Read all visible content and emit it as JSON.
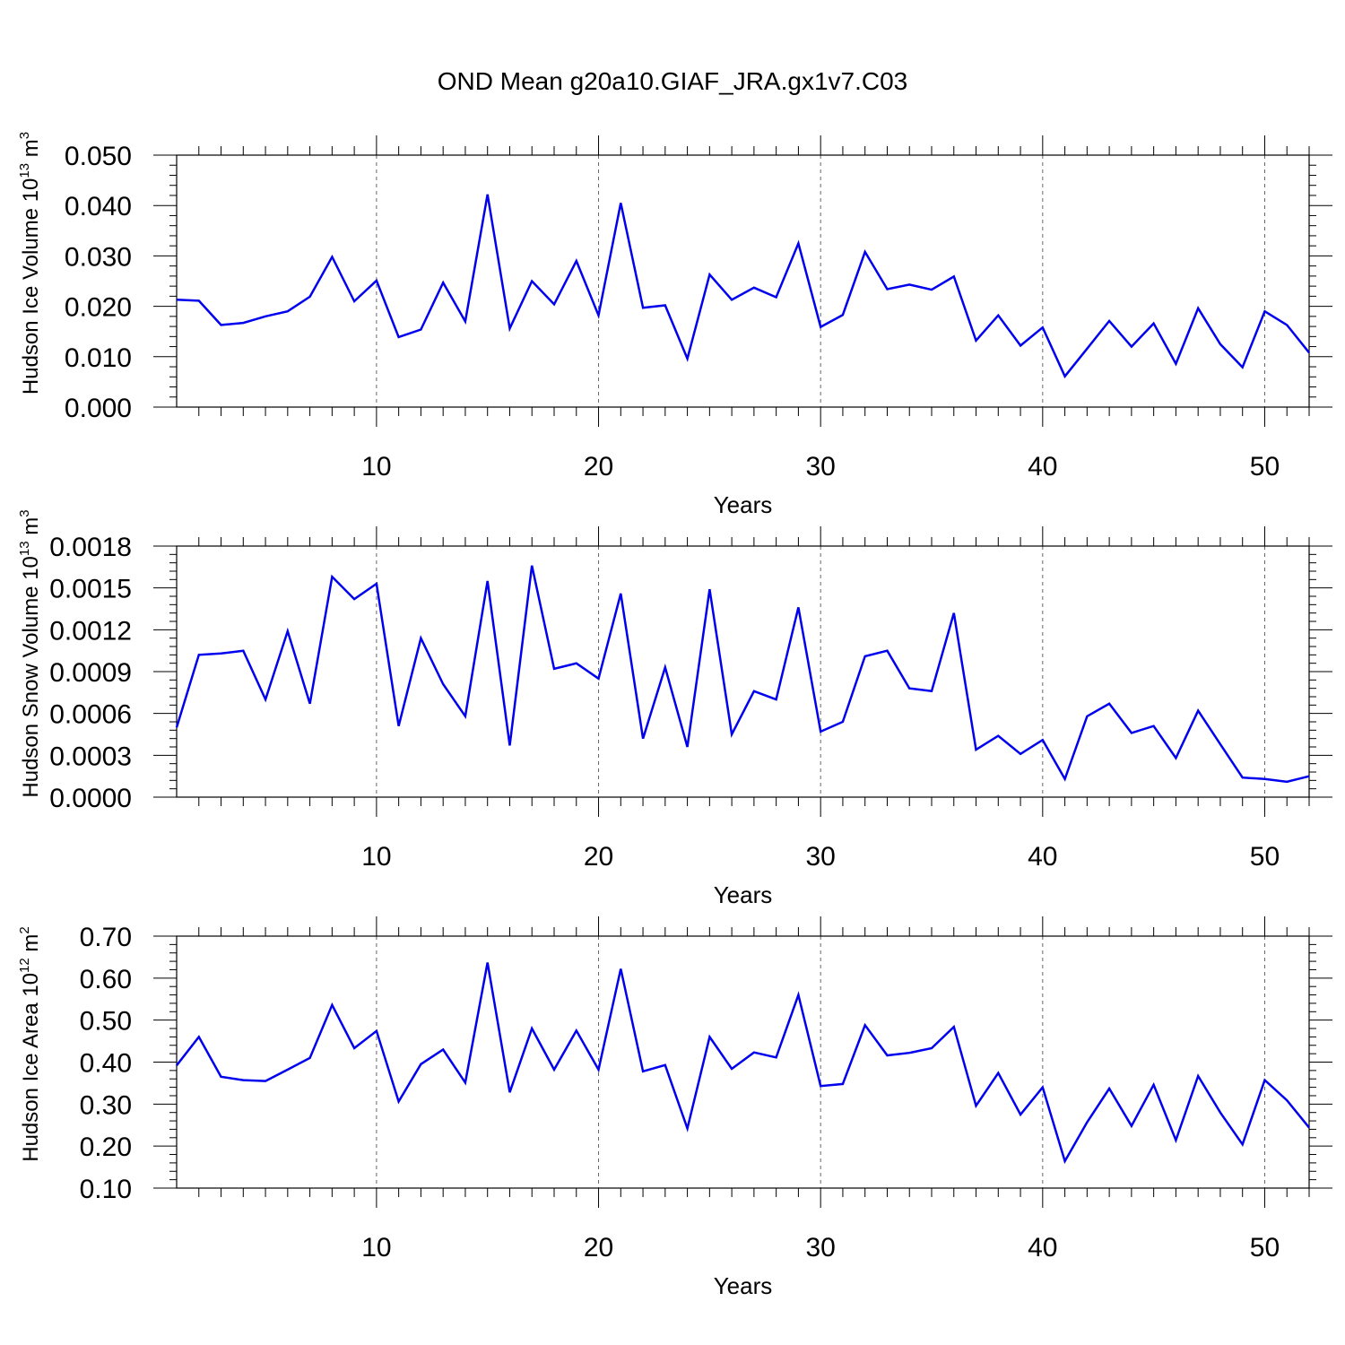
{
  "title": "OND Mean g20a10.GIAF_JRA.gx1v7.C03",
  "colors": {
    "series": "#0000ee",
    "axis": "#000000",
    "grid": "#666666"
  },
  "chart_data": [
    {
      "type": "line",
      "xlabel": "Years",
      "ylabel": "Hudson Ice Volume 10",
      "ylabel_sup": "13",
      "ylabel_unit": "m",
      "ylabel_unit_sup": "3",
      "xlim": [
        1,
        52
      ],
      "ylim": [
        0,
        0.05
      ],
      "x_ticks": [
        10,
        20,
        30,
        40,
        50
      ],
      "y_ticks": [
        0,
        0.01,
        0.02,
        0.03,
        0.04,
        0.05
      ],
      "y_tick_labels": [
        "0.000",
        "0.010",
        "0.020",
        "0.030",
        "0.040",
        "0.050"
      ],
      "grid": "vertical dashed at x ticks",
      "x": [
        1,
        2,
        3,
        4,
        5,
        6,
        7,
        8,
        9,
        10,
        11,
        12,
        13,
        14,
        15,
        16,
        17,
        18,
        19,
        20,
        21,
        22,
        23,
        24,
        25,
        26,
        27,
        28,
        29,
        30,
        31,
        32,
        33,
        34,
        35,
        36,
        37,
        38,
        39,
        40,
        41,
        42,
        43,
        44,
        45,
        46,
        47,
        48,
        49,
        50,
        51,
        52
      ],
      "values": [
        0.0213,
        0.0211,
        0.0163,
        0.0167,
        0.018,
        0.019,
        0.0219,
        0.0298,
        0.021,
        0.0251,
        0.0139,
        0.0154,
        0.0247,
        0.017,
        0.0422,
        0.0156,
        0.025,
        0.0204,
        0.029,
        0.0182,
        0.0405,
        0.0197,
        0.0202,
        0.0096,
        0.0263,
        0.0213,
        0.0237,
        0.0218,
        0.0325,
        0.0159,
        0.0183,
        0.0308,
        0.0234,
        0.0243,
        0.0233,
        0.0259,
        0.0132,
        0.0182,
        0.0122,
        0.0158,
        0.0061,
        0.0116,
        0.0171,
        0.012,
        0.0166,
        0.0086,
        0.0196,
        0.0125,
        0.0079,
        0.019,
        0.0163,
        0.0108
      ]
    },
    {
      "type": "line",
      "xlabel": "Years",
      "ylabel": "Hudson Snow Volume 10",
      "ylabel_sup": "13",
      "ylabel_unit": "m",
      "ylabel_unit_sup": "3",
      "xlim": [
        1,
        52
      ],
      "ylim": [
        0,
        0.0018
      ],
      "x_ticks": [
        10,
        20,
        30,
        40,
        50
      ],
      "y_ticks": [
        0,
        0.0003,
        0.0006,
        0.0009,
        0.0012,
        0.0015,
        0.0018
      ],
      "y_tick_labels": [
        "0.0000",
        "0.0003",
        "0.0006",
        "0.0009",
        "0.0012",
        "0.0015",
        "0.0018"
      ],
      "grid": "vertical dashed at x ticks",
      "x": [
        1,
        2,
        3,
        4,
        5,
        6,
        7,
        8,
        9,
        10,
        11,
        12,
        13,
        14,
        15,
        16,
        17,
        18,
        19,
        20,
        21,
        22,
        23,
        24,
        25,
        26,
        27,
        28,
        29,
        30,
        31,
        32,
        33,
        34,
        35,
        36,
        37,
        38,
        39,
        40,
        41,
        42,
        43,
        44,
        45,
        46,
        47,
        48,
        49,
        50,
        51,
        52
      ],
      "values": [
        0.0005,
        0.00102,
        0.00103,
        0.00105,
        0.0007,
        0.00119,
        0.00067,
        0.00158,
        0.00142,
        0.00153,
        0.00051,
        0.00114,
        0.00081,
        0.00058,
        0.00155,
        0.00037,
        0.00166,
        0.00092,
        0.00096,
        0.00085,
        0.00146,
        0.00042,
        0.00093,
        0.00036,
        0.00149,
        0.00045,
        0.00076,
        0.0007,
        0.00136,
        0.00047,
        0.00054,
        0.00101,
        0.00105,
        0.00078,
        0.00076,
        0.00132,
        0.00034,
        0.00044,
        0.00031,
        0.00041,
        0.00013,
        0.00058,
        0.00067,
        0.00046,
        0.00051,
        0.00028,
        0.00062,
        0.00038,
        0.00014,
        0.00013,
        0.00011,
        0.00015
      ]
    },
    {
      "type": "line",
      "xlabel": "Years",
      "ylabel": "Hudson Ice Area 10",
      "ylabel_sup": "12",
      "ylabel_unit": "m",
      "ylabel_unit_sup": "2",
      "xlim": [
        1,
        52
      ],
      "ylim": [
        0.1,
        0.7
      ],
      "x_ticks": [
        10,
        20,
        30,
        40,
        50
      ],
      "y_ticks": [
        0.1,
        0.2,
        0.3,
        0.4,
        0.5,
        0.6,
        0.7
      ],
      "y_tick_labels": [
        "0.10",
        "0.20",
        "0.30",
        "0.40",
        "0.50",
        "0.60",
        "0.70"
      ],
      "grid": "vertical dashed at x ticks",
      "x": [
        1,
        2,
        3,
        4,
        5,
        6,
        7,
        8,
        9,
        10,
        11,
        12,
        13,
        14,
        15,
        16,
        17,
        18,
        19,
        20,
        21,
        22,
        23,
        24,
        25,
        26,
        27,
        28,
        29,
        30,
        31,
        32,
        33,
        34,
        35,
        36,
        37,
        38,
        39,
        40,
        41,
        42,
        43,
        44,
        45,
        46,
        47,
        48,
        49,
        50,
        51,
        52
      ],
      "values": [
        0.392,
        0.46,
        0.365,
        0.357,
        0.355,
        0.382,
        0.41,
        0.536,
        0.433,
        0.474,
        0.306,
        0.395,
        0.43,
        0.351,
        0.637,
        0.328,
        0.48,
        0.382,
        0.475,
        0.382,
        0.622,
        0.378,
        0.393,
        0.242,
        0.46,
        0.384,
        0.423,
        0.411,
        0.56,
        0.343,
        0.348,
        0.488,
        0.416,
        0.422,
        0.433,
        0.484,
        0.296,
        0.374,
        0.275,
        0.34,
        0.164,
        0.257,
        0.337,
        0.248,
        0.346,
        0.214,
        0.367,
        0.28,
        0.204,
        0.357,
        0.309,
        0.244
      ]
    }
  ]
}
